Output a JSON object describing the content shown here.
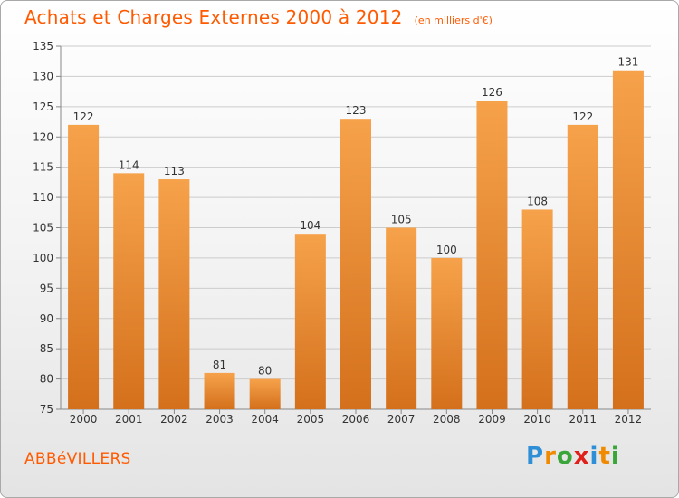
{
  "header": {
    "title": "Achats et Charges Externes 2000 à 2012",
    "unit": "(en milliers d'€)"
  },
  "town": "ABBéVILLERS",
  "brand": {
    "letters": [
      "P",
      "r",
      "o",
      "x",
      "i",
      "t",
      "i"
    ],
    "colors": [
      "#2e8fd6",
      "#f08a00",
      "#3aa63a",
      "#e0201b",
      "#2e8fd6",
      "#f08a00",
      "#3aa63a"
    ]
  },
  "colors": {
    "title": "#ff5a00",
    "bar_light": "#f6a24b",
    "bar_dark": "#d4701c",
    "grid": "#cccccc",
    "axis": "#888888",
    "text": "#333333"
  },
  "chart_data": {
    "type": "bar",
    "title": "Achats et Charges Externes 2000 à 2012",
    "subtitle": "(en milliers d'€)",
    "xlabel": "",
    "ylabel": "",
    "categories": [
      "2000",
      "2001",
      "2002",
      "2003",
      "2004",
      "2005",
      "2006",
      "2007",
      "2008",
      "2009",
      "2010",
      "2011",
      "2012"
    ],
    "values": [
      122,
      114,
      113,
      81,
      80,
      104,
      123,
      105,
      100,
      126,
      108,
      122,
      131
    ],
    "ylim": [
      75,
      135
    ],
    "yticks": [
      75,
      80,
      85,
      90,
      95,
      100,
      105,
      110,
      115,
      120,
      125,
      130,
      135
    ],
    "grid": true,
    "legend": "none"
  }
}
